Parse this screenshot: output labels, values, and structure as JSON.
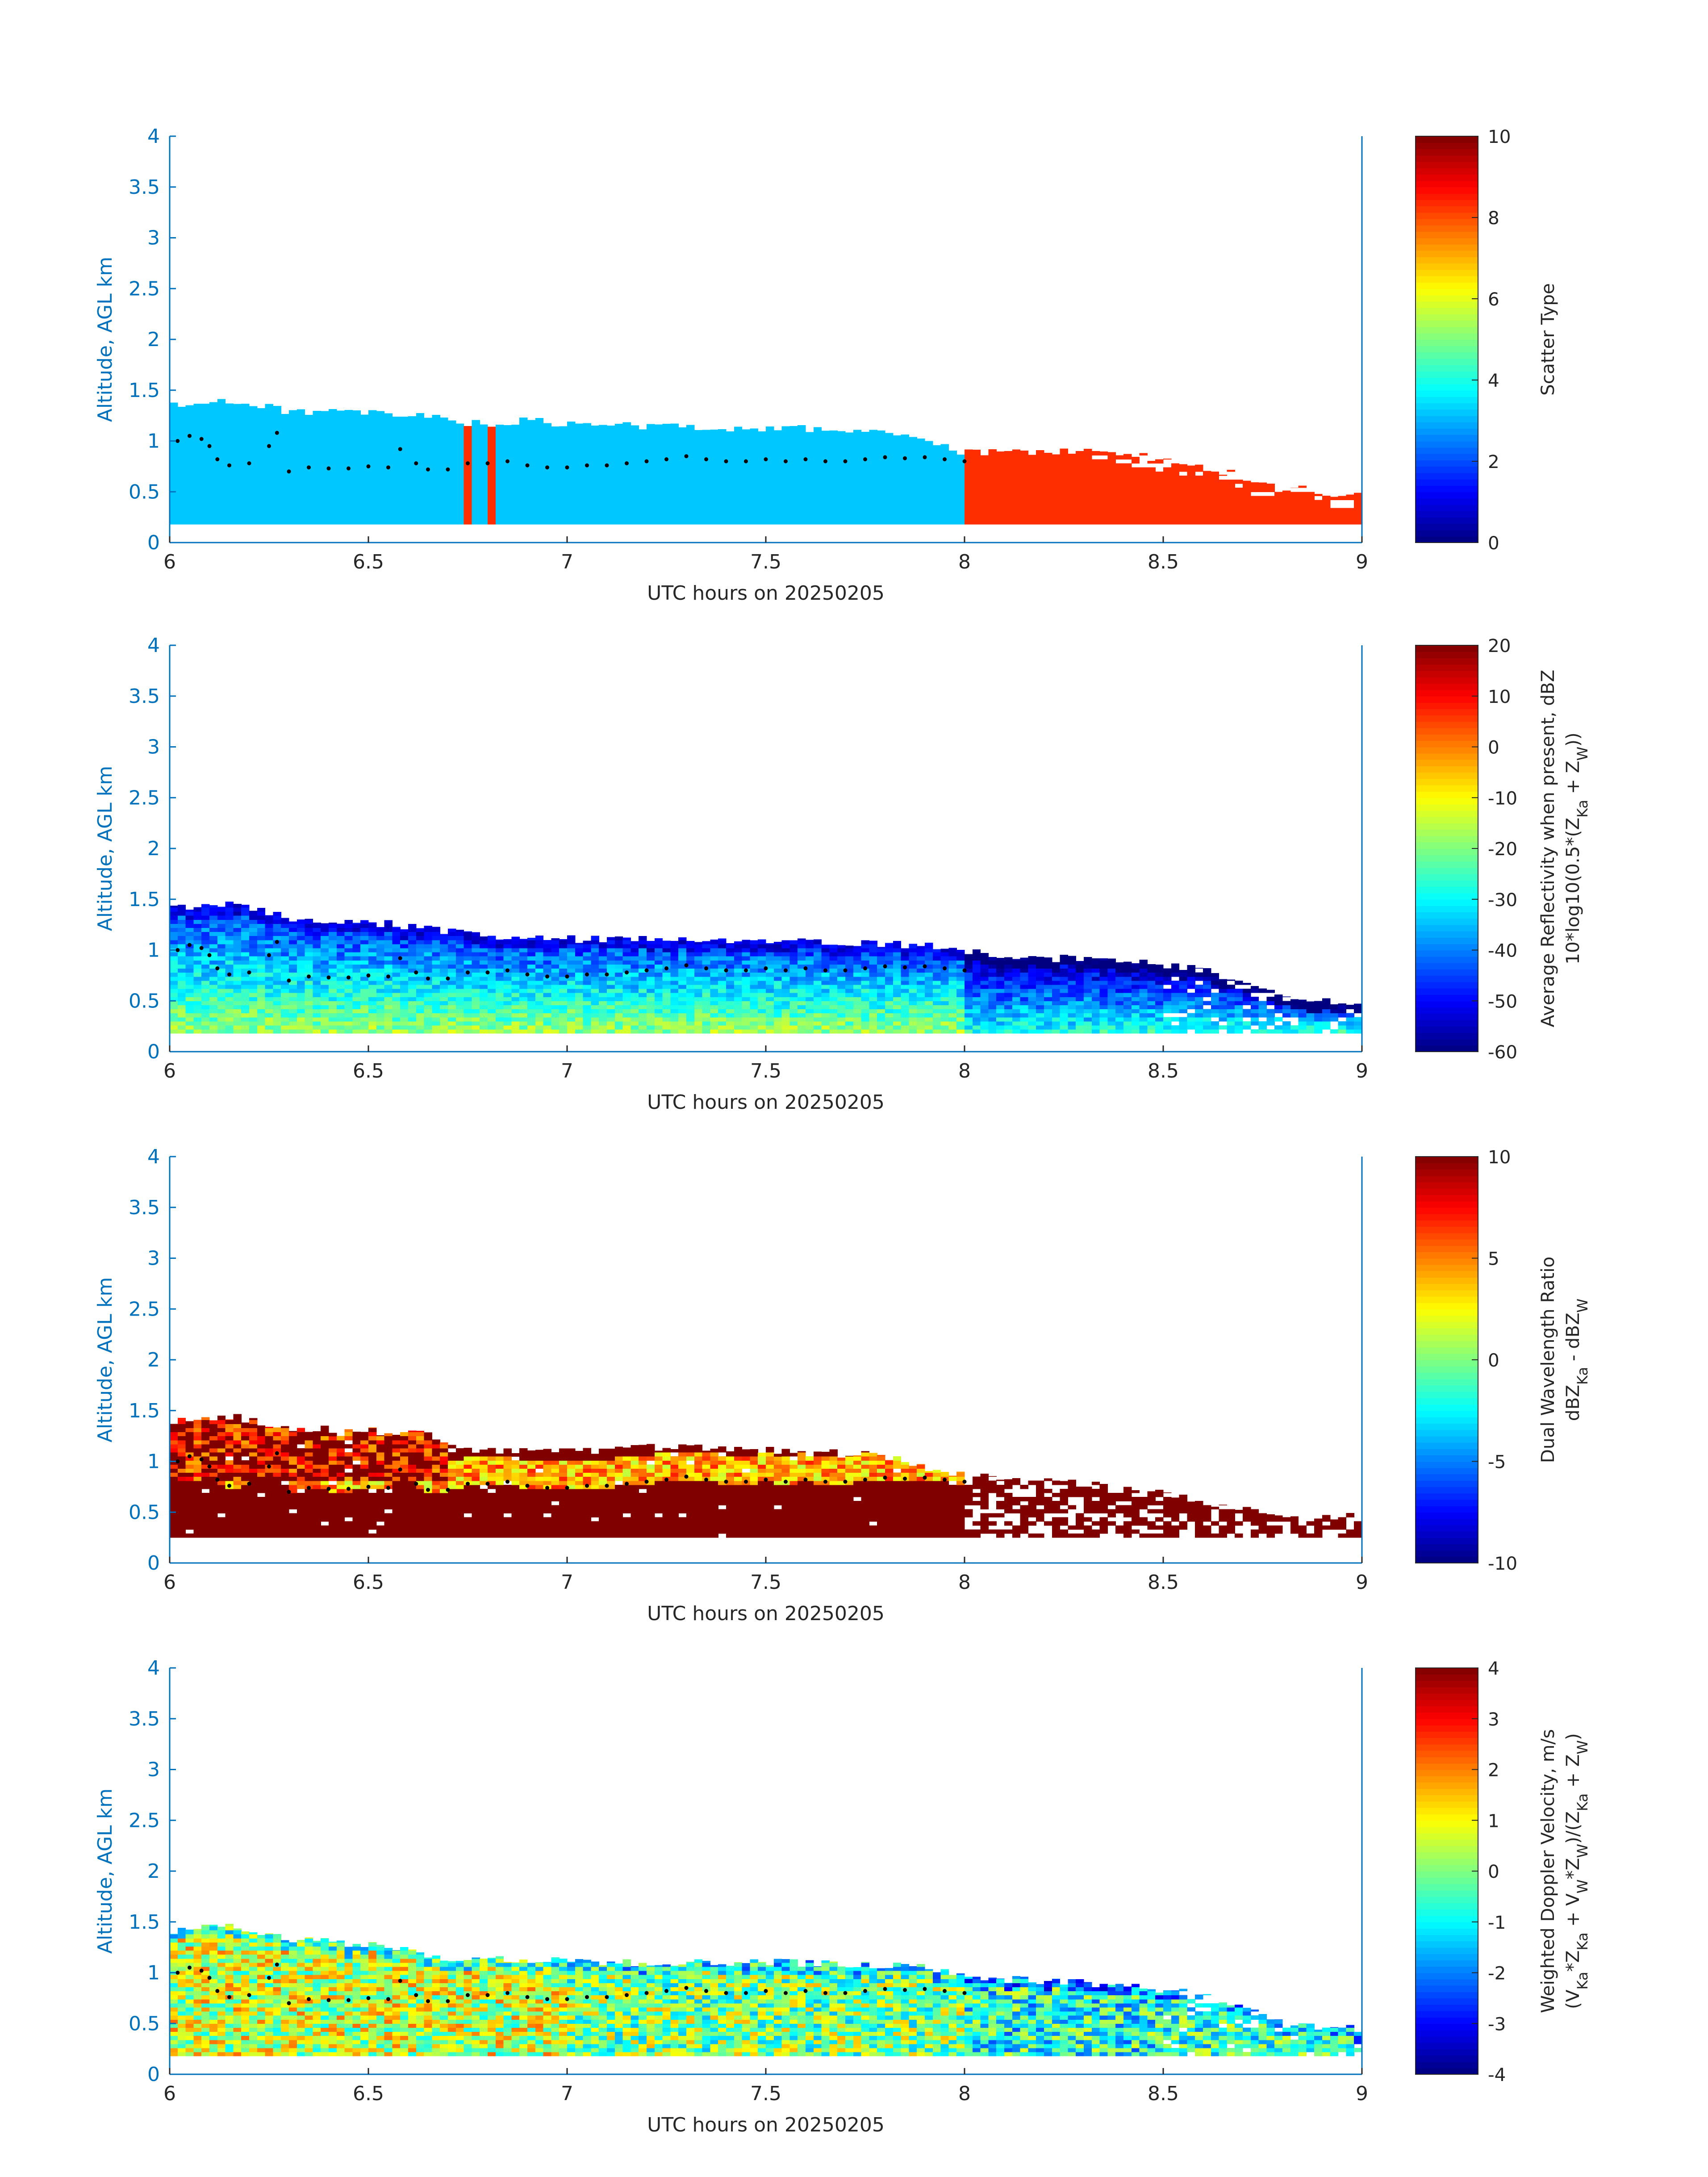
{
  "figure": {
    "title": "",
    "background": "#ffffff",
    "axis_color": "#0072bd",
    "text_color": "#262626",
    "colormap": "jet"
  },
  "chart_data": [
    {
      "type": "heatmap",
      "id": "scatter",
      "xlabel": "UTC hours on 20250205",
      "ylabel": "Altitude, AGL km",
      "xlim": [
        6,
        9
      ],
      "ylim": [
        0,
        4
      ],
      "xticks": [
        "6",
        "6.5",
        "7",
        "7.5",
        "8",
        "8.5",
        "9"
      ],
      "yticks": [
        "0",
        "0.5",
        "1",
        "1.5",
        "2",
        "2.5",
        "3",
        "3.5",
        "4"
      ],
      "colorbar": {
        "label_lines": [
          "Scatter Type"
        ],
        "clim": [
          0,
          10
        ],
        "ticks": [
          "0",
          "2",
          "4",
          "6",
          "8",
          "10"
        ]
      },
      "layer": {
        "base_km": 0.18,
        "pattern": "categorical",
        "segments": [
          {
            "t0": 6.0,
            "t1": 6.74,
            "value": 3.2
          },
          {
            "t0": 6.74,
            "t1": 6.77,
            "value": 8.3
          },
          {
            "t0": 6.77,
            "t1": 6.8,
            "value": 3.2
          },
          {
            "t0": 6.8,
            "t1": 6.83,
            "value": 8.3
          },
          {
            "t0": 6.83,
            "t1": 8.0,
            "value": 3.2
          },
          {
            "t0": 8.0,
            "t1": 9.0,
            "value": 8.3
          }
        ],
        "top_km": [
          [
            6.0,
            1.38
          ],
          [
            6.05,
            1.33
          ],
          [
            6.1,
            1.42
          ],
          [
            6.2,
            1.35
          ],
          [
            6.3,
            1.3
          ],
          [
            6.4,
            1.28
          ],
          [
            6.5,
            1.27
          ],
          [
            6.6,
            1.25
          ],
          [
            6.7,
            1.22
          ],
          [
            6.8,
            1.15
          ],
          [
            6.9,
            1.2
          ],
          [
            7.0,
            1.16
          ],
          [
            7.2,
            1.15
          ],
          [
            7.4,
            1.13
          ],
          [
            7.6,
            1.12
          ],
          [
            7.8,
            1.1
          ],
          [
            8.0,
            0.88
          ],
          [
            8.2,
            0.9
          ],
          [
            8.4,
            0.88
          ],
          [
            8.6,
            0.75
          ],
          [
            8.8,
            0.55
          ],
          [
            9.0,
            0.45
          ]
        ],
        "gaps": false
      }
    },
    {
      "type": "heatmap",
      "id": "reflectivity",
      "xlabel": "UTC hours on 20250205",
      "ylabel": "Altitude, AGL km",
      "xlim": [
        6,
        9
      ],
      "ylim": [
        0,
        4
      ],
      "xticks": [
        "6",
        "6.5",
        "7",
        "7.5",
        "8",
        "8.5",
        "9"
      ],
      "yticks": [
        "0",
        "0.5",
        "1",
        "1.5",
        "2",
        "2.5",
        "3",
        "3.5",
        "4"
      ],
      "colorbar": {
        "label_lines": [
          "Average Reflectivity when present, dBZ",
          "10*log10(0.5*(Z_{Ka} + Z_{W}))"
        ],
        "clim": [
          -60,
          20
        ],
        "ticks": [
          "-60",
          "-50",
          "-40",
          "-30",
          "-20",
          "-10",
          "0",
          "10",
          "20"
        ]
      },
      "layer": {
        "base_km": 0.18,
        "pattern": "reflectivity",
        "top_km": [
          [
            6.0,
            1.42
          ],
          [
            6.15,
            1.45
          ],
          [
            6.3,
            1.32
          ],
          [
            6.5,
            1.28
          ],
          [
            6.7,
            1.18
          ],
          [
            6.9,
            1.12
          ],
          [
            7.1,
            1.1
          ],
          [
            7.3,
            1.1
          ],
          [
            7.5,
            1.1
          ],
          [
            7.7,
            1.08
          ],
          [
            7.9,
            1.05
          ],
          [
            8.0,
            0.98
          ],
          [
            8.2,
            0.92
          ],
          [
            8.4,
            0.9
          ],
          [
            8.6,
            0.8
          ],
          [
            8.8,
            0.55
          ],
          [
            9.0,
            0.45
          ]
        ],
        "gaps": false
      }
    },
    {
      "type": "heatmap",
      "id": "dwr",
      "xlabel": "UTC hours on 20250205",
      "ylabel": "Altitude, AGL km",
      "xlim": [
        6,
        9
      ],
      "ylim": [
        0,
        4
      ],
      "xticks": [
        "6",
        "6.5",
        "7",
        "7.5",
        "8",
        "8.5",
        "9"
      ],
      "yticks": [
        "0",
        "0.5",
        "1",
        "1.5",
        "2",
        "2.5",
        "3",
        "3.5",
        "4"
      ],
      "colorbar": {
        "label_lines": [
          "Dual Wavelength Ratio",
          "dBZ_{Ka} - dBZ_{W}"
        ],
        "clim": [
          -10,
          10
        ],
        "ticks": [
          "-10",
          "-5",
          "0",
          "5",
          "10"
        ]
      },
      "layer": {
        "base_km": 0.25,
        "pattern": "dwr",
        "top_km": [
          [
            6.0,
            1.42
          ],
          [
            6.15,
            1.45
          ],
          [
            6.3,
            1.33
          ],
          [
            6.5,
            1.3
          ],
          [
            6.65,
            1.28
          ],
          [
            6.75,
            1.1
          ],
          [
            7.0,
            1.1
          ],
          [
            7.3,
            1.15
          ],
          [
            7.5,
            1.12
          ],
          [
            7.8,
            1.05
          ],
          [
            8.0,
            0.85
          ],
          [
            8.2,
            0.82
          ],
          [
            8.4,
            0.75
          ],
          [
            8.6,
            0.6
          ],
          [
            8.8,
            0.48
          ],
          [
            9.0,
            0.45
          ]
        ],
        "gaps": true
      }
    },
    {
      "type": "heatmap",
      "id": "doppler",
      "xlabel": "UTC hours on 20250205",
      "ylabel": "Altitude, AGL km",
      "xlim": [
        6,
        9
      ],
      "ylim": [
        0,
        4
      ],
      "xticks": [
        "6",
        "6.5",
        "7",
        "7.5",
        "8",
        "8.5",
        "9"
      ],
      "yticks": [
        "0",
        "0.5",
        "1",
        "1.5",
        "2",
        "2.5",
        "3",
        "3.5",
        "4"
      ],
      "colorbar": {
        "label_lines": [
          "Weighted Doppler Velocity, m/s",
          "(V_{Ka}*Z_{Ka} + V_{W}*Z_{W})/(Z_{Ka} + Z_{W})"
        ],
        "clim": [
          -4,
          4
        ],
        "ticks": [
          "-4",
          "-3",
          "-2",
          "-1",
          "0",
          "1",
          "2",
          "3",
          "4"
        ]
      },
      "layer": {
        "base_km": 0.18,
        "pattern": "doppler",
        "top_km": [
          [
            6.0,
            1.42
          ],
          [
            6.15,
            1.45
          ],
          [
            6.3,
            1.32
          ],
          [
            6.5,
            1.28
          ],
          [
            6.7,
            1.15
          ],
          [
            6.9,
            1.12
          ],
          [
            7.1,
            1.1
          ],
          [
            7.3,
            1.1
          ],
          [
            7.5,
            1.1
          ],
          [
            7.7,
            1.08
          ],
          [
            7.9,
            1.05
          ],
          [
            8.0,
            0.95
          ],
          [
            8.2,
            0.92
          ],
          [
            8.4,
            0.88
          ],
          [
            8.6,
            0.78
          ],
          [
            8.8,
            0.5
          ],
          [
            9.0,
            0.45
          ]
        ],
        "gaps": false
      }
    }
  ],
  "cloud_base": {
    "color": "#000000",
    "points_km": [
      [
        6.02,
        1.0
      ],
      [
        6.05,
        1.05
      ],
      [
        6.08,
        1.02
      ],
      [
        6.1,
        0.95
      ],
      [
        6.12,
        0.82
      ],
      [
        6.15,
        0.76
      ],
      [
        6.2,
        0.78
      ],
      [
        6.25,
        0.95
      ],
      [
        6.27,
        1.08
      ],
      [
        6.3,
        0.7
      ],
      [
        6.35,
        0.74
      ],
      [
        6.4,
        0.73
      ],
      [
        6.45,
        0.73
      ],
      [
        6.5,
        0.75
      ],
      [
        6.55,
        0.74
      ],
      [
        6.58,
        0.92
      ],
      [
        6.62,
        0.78
      ],
      [
        6.65,
        0.72
      ],
      [
        6.7,
        0.72
      ],
      [
        6.75,
        0.78
      ],
      [
        6.8,
        0.78
      ],
      [
        6.85,
        0.8
      ],
      [
        6.9,
        0.76
      ],
      [
        6.95,
        0.74
      ],
      [
        7.0,
        0.74
      ],
      [
        7.05,
        0.76
      ],
      [
        7.1,
        0.76
      ],
      [
        7.15,
        0.78
      ],
      [
        7.2,
        0.8
      ],
      [
        7.25,
        0.82
      ],
      [
        7.3,
        0.85
      ],
      [
        7.35,
        0.82
      ],
      [
        7.4,
        0.8
      ],
      [
        7.45,
        0.8
      ],
      [
        7.5,
        0.82
      ],
      [
        7.55,
        0.8
      ],
      [
        7.6,
        0.82
      ],
      [
        7.65,
        0.8
      ],
      [
        7.7,
        0.8
      ],
      [
        7.75,
        0.82
      ],
      [
        7.8,
        0.84
      ],
      [
        7.85,
        0.83
      ],
      [
        7.9,
        0.84
      ],
      [
        7.95,
        0.82
      ],
      [
        8.0,
        0.8
      ]
    ]
  }
}
